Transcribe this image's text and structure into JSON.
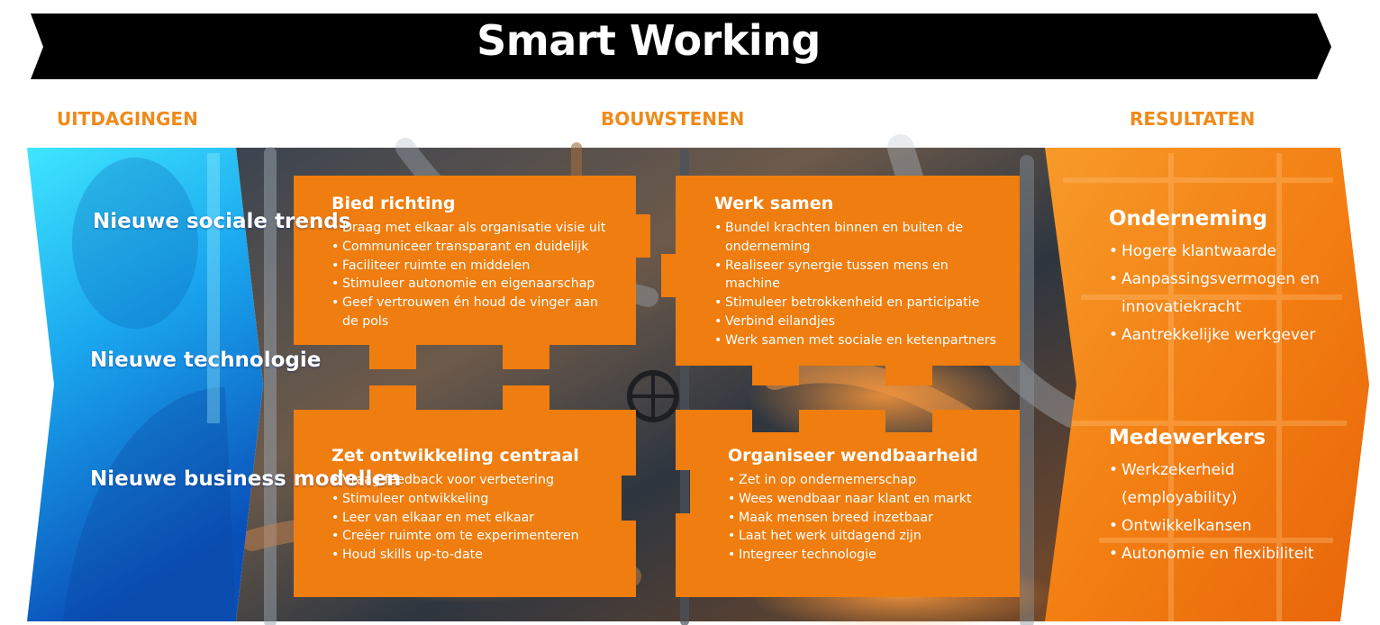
{
  "header": {
    "title": "Smart Working"
  },
  "columns": {
    "left": "UITDAGINGEN",
    "center": "BOUWSTENEN",
    "right": "RESULTATEN"
  },
  "challenges": [
    "Nieuwe sociale trends",
    "Nieuwe technologie",
    "Nieuwe business modellen"
  ],
  "blocks": [
    {
      "title": "Bied richting",
      "items": [
        "Draag met elkaar als organisatie visie uit",
        "Communiceer transparant en duidelijk",
        "Faciliteer ruimte en middelen",
        "Stimuleer autonomie en eigenaarschap",
        "Geef vertrouwen én houd de vinger aan de pols"
      ]
    },
    {
      "title": "Werk samen",
      "items": [
        "Bundel krachten binnen en buiten de onderneming",
        "Realiseer synergie tussen mens en machine",
        "Stimuleer betrokkenheid en participatie",
        "Verbind eilandjes",
        "Werk samen met sociale en ketenpartners"
      ]
    },
    {
      "title": "Zet ontwikkeling centraal",
      "items": [
        "Vraag feedback voor verbetering",
        "Stimuleer ontwikkeling",
        "Leer van elkaar en met elkaar",
        "Creëer ruimte om te experimenteren",
        "Houd skills up-to-date"
      ]
    },
    {
      "title": "Organiseer wendbaarheid",
      "items": [
        "Zet in op ondernemerschap",
        "Wees wendbaar naar klant en markt",
        "Maak mensen breed inzetbaar",
        "Laat het werk uitdagend zijn",
        "Integreer technologie"
      ]
    }
  ],
  "results": [
    {
      "title": "Onderneming",
      "items": [
        "Hogere klantwaarde",
        "Aanpassingsvermogen en innovatiekracht",
        "Aantrekkelijke werkgever"
      ]
    },
    {
      "title": "Medewerkers",
      "items": [
        "Werkzekerheid (employability)",
        "Ontwikkelkansen",
        "Autonomie en flexibiliteit"
      ]
    }
  ],
  "colors": {
    "accent": "#f08a1a",
    "tile": "#ef7d0f",
    "banner": "#000000",
    "left_panel": "#1f8fe0"
  }
}
